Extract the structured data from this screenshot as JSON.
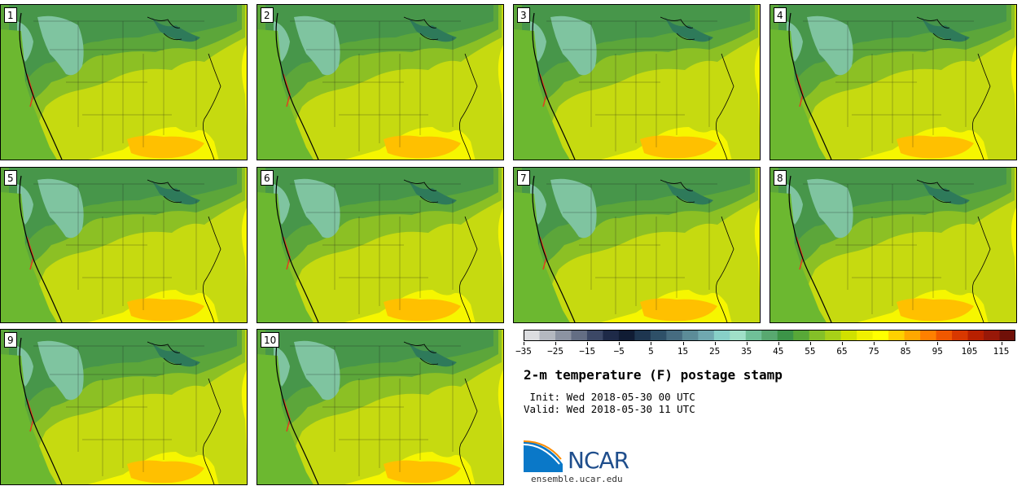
{
  "panels": [
    {
      "label": "1"
    },
    {
      "label": "2"
    },
    {
      "label": "3"
    },
    {
      "label": "4"
    },
    {
      "label": "5"
    },
    {
      "label": "6"
    },
    {
      "label": "7"
    },
    {
      "label": "8"
    },
    {
      "label": "9"
    },
    {
      "label": "10"
    }
  ],
  "colorbar": {
    "colors": [
      "#dcdde0",
      "#b4b8c0",
      "#8c93a2",
      "#646e84",
      "#3c4866",
      "#1e2a48",
      "#101c34",
      "#1e3650",
      "#2e5068",
      "#466c80",
      "#5c8c98",
      "#70a8b0",
      "#88d0c8",
      "#a0e0c8",
      "#70c098",
      "#58a870",
      "#3c9448",
      "#58a838",
      "#84c028",
      "#a8d018",
      "#d0e000",
      "#f0f000",
      "#ffff00",
      "#ffd000",
      "#ffa800",
      "#ff8000",
      "#f05800",
      "#d83800",
      "#b82000",
      "#981808",
      "#701008"
    ],
    "ticks": [
      "−35",
      "−25",
      "−15",
      "−5",
      "5",
      "15",
      "25",
      "35",
      "45",
      "55",
      "65",
      "75",
      "85",
      "95",
      "105",
      "115"
    ]
  },
  "title": "2-m temperature (F) postage stamp",
  "init": " Init: Wed 2018-05-30 00 UTC",
  "valid": "Valid: Wed 2018-05-30 11 UTC",
  "logo": {
    "text": "NCAR",
    "site": "ensemble.ucar.edu",
    "brand_color": "#1f4e8c",
    "swoosh_color": "#0a78c8"
  }
}
